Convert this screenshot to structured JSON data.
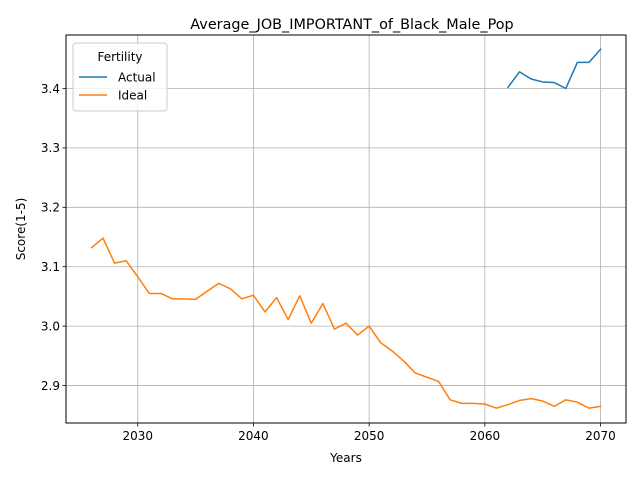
{
  "chart_data": {
    "type": "line",
    "title": "Average_JOB_IMPORTANT_of_Black_Male_Pop",
    "xlabel": "Years",
    "ylabel": "Score(1-5)",
    "xlim": [
      2023.8,
      2072.2
    ],
    "ylim": [
      2.837,
      3.49
    ],
    "xticks": [
      2030,
      2040,
      2050,
      2060,
      2070
    ],
    "yticks": [
      2.9,
      3.0,
      3.1,
      3.2,
      3.3,
      3.4
    ],
    "ytick_labels": [
      "2.9",
      "3.0",
      "3.1",
      "3.2",
      "3.3",
      "3.4"
    ],
    "grid": true,
    "legend": {
      "title": "Fertility",
      "placement": "top-left"
    },
    "series": [
      {
        "name": "Actual",
        "color": "#1f77b4",
        "x": [
          2062,
          2063,
          2064,
          2065,
          2066,
          2067,
          2068,
          2069,
          2070
        ],
        "y": [
          3.402,
          3.428,
          3.416,
          3.411,
          3.41,
          3.4,
          3.444,
          3.444,
          3.466
        ]
      },
      {
        "name": "Ideal",
        "color": "#ff7f0e",
        "x": [
          2026,
          2027,
          2028,
          2029,
          2030,
          2031,
          2032,
          2033,
          2034,
          2035,
          2036,
          2037,
          2038,
          2039,
          2040,
          2041,
          2042,
          2043,
          2044,
          2045,
          2046,
          2047,
          2048,
          2049,
          2050,
          2051,
          2052,
          2053,
          2054,
          2055,
          2056,
          2057,
          2058,
          2059,
          2060,
          2061,
          2062,
          2063,
          2064,
          2065,
          2066,
          2067,
          2068,
          2069,
          2070
        ],
        "y": [
          3.132,
          3.148,
          3.106,
          3.11,
          3.083,
          3.055,
          3.055,
          3.046,
          3.046,
          3.045,
          3.059,
          3.072,
          3.063,
          3.046,
          3.052,
          3.024,
          3.048,
          3.011,
          3.051,
          3.005,
          3.038,
          2.995,
          3.005,
          2.985,
          3.0,
          2.972,
          2.958,
          2.941,
          2.921,
          2.914,
          2.907,
          2.876,
          2.87,
          2.87,
          2.869,
          2.862,
          2.868,
          2.875,
          2.878,
          2.874,
          2.865,
          2.876,
          2.872,
          2.862,
          2.865
        ]
      }
    ]
  }
}
